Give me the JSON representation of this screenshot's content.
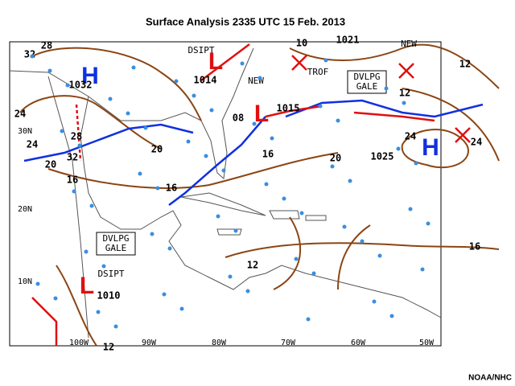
{
  "title": "Surface Analysis  2335 UTC 15 Feb. 2013",
  "credit": "NOAA/NHC",
  "latitude_labels": [
    "30N",
    "20N",
    "10N"
  ],
  "longitude_labels": [
    "100W",
    "90W",
    "80W",
    "70W",
    "60W",
    "50W"
  ],
  "pressure_centers": [
    {
      "symbol": "H",
      "value": "1032"
    },
    {
      "symbol": "H",
      "value": "1025"
    },
    {
      "symbol": "L",
      "value": "1015"
    },
    {
      "symbol": "L",
      "value": "1010"
    },
    {
      "symbol": "L",
      "value": "1014"
    }
  ],
  "isobar_labels": [
    "32",
    "28",
    "24",
    "24",
    "28",
    "32",
    "20",
    "16",
    "20",
    "16",
    "16",
    "08",
    "10",
    "1021",
    "12",
    "12",
    "24",
    "24",
    "20",
    "16",
    "12",
    "12"
  ],
  "annotations": [
    "DSIPT",
    "NEW",
    "TROF",
    "NEW",
    "DSIPT"
  ],
  "gale_boxes": [
    [
      "DVLPG",
      "GALE"
    ],
    [
      "DVLPG",
      "GALE"
    ]
  ]
}
